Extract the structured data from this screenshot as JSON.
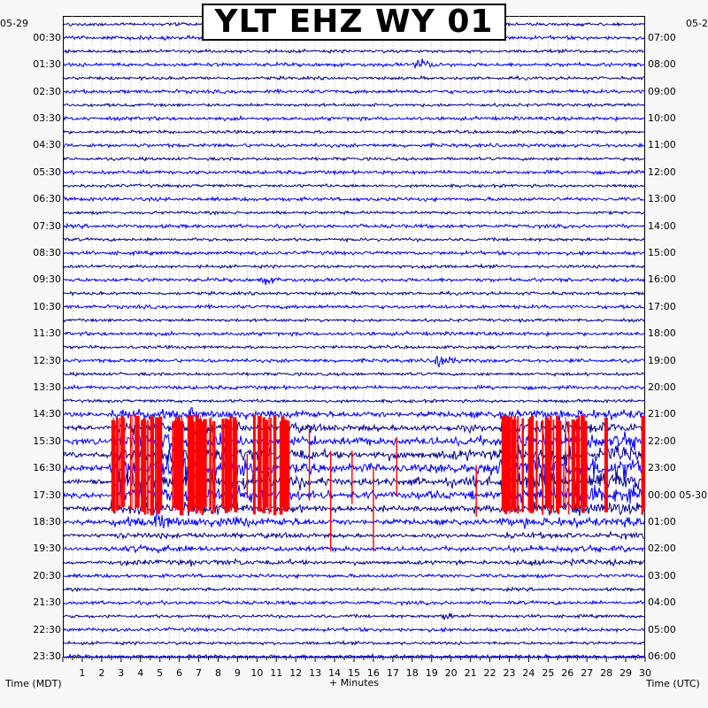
{
  "chart_data": {
    "type": "line",
    "title": "YLT EHZ WY 01",
    "xlabel": "+ Minutes",
    "left_axis_label": "Time (MDT)",
    "right_axis_label": "Time (UTC)",
    "left_date": "05-29",
    "right_date_top": "05-2",
    "right_date_mid": "05-30",
    "x_ticks": [
      "1",
      "2",
      "3",
      "4",
      "5",
      "6",
      "7",
      "8",
      "9",
      "10",
      "11",
      "12",
      "13",
      "14",
      "15",
      "16",
      "17",
      "18",
      "19",
      "20",
      "21",
      "22",
      "23",
      "24",
      "25",
      "26",
      "27",
      "28",
      "29",
      "30"
    ],
    "xlim": [
      0,
      30
    ],
    "left_ticks": [
      "00:30",
      "01:30",
      "02:30",
      "03:30",
      "04:30",
      "05:30",
      "06:30",
      "07:30",
      "08:30",
      "09:30",
      "10:30",
      "11:30",
      "12:30",
      "13:30",
      "14:30",
      "15:30",
      "16:30",
      "17:30",
      "18:30",
      "19:30",
      "20:30",
      "21:30",
      "22:30",
      "23:30"
    ],
    "right_ticks": [
      "07:00",
      "08:00",
      "09:00",
      "10:00",
      "11:00",
      "12:00",
      "13:00",
      "14:00",
      "15:00",
      "16:00",
      "17:00",
      "18:00",
      "19:00",
      "20:00",
      "21:00",
      "22:00",
      "23:00",
      "00:00",
      "01:00",
      "02:00",
      "03:00",
      "04:00",
      "05:00",
      "06:00"
    ],
    "trace_count": 48,
    "trace_colors": [
      "#00008b",
      "#0000ff"
    ],
    "clip_color": "#ff0000",
    "events": [
      {
        "trace": 3,
        "minute": 18.3,
        "amp": 1.2
      },
      {
        "trace": 18,
        "minute": 18.5,
        "amp": 0.5
      },
      {
        "trace": 19,
        "minute": 10.3,
        "amp": 0.7
      },
      {
        "trace": 25,
        "minute": 19.3,
        "amp": 1.6
      },
      {
        "trace": 37,
        "minute": 4.9,
        "amp": 1.8
      },
      {
        "trace": 44,
        "minute": 19.6,
        "amp": 0.6
      }
    ],
    "storm": {
      "traces": [
        29,
        30,
        31,
        32,
        33,
        34,
        35,
        36,
        37,
        38,
        39,
        40
      ],
      "peak_trace": 33
    },
    "clip_bursts": [
      {
        "start": 2.5,
        "end": 8.9
      },
      {
        "start": 9.8,
        "end": 11.5
      },
      {
        "start": 12.3,
        "end": 12.7
      },
      {
        "start": 22.6,
        "end": 27.0
      },
      {
        "start": 27.9,
        "end": 28.1
      },
      {
        "start": 29.8,
        "end": 30.0
      }
    ]
  }
}
